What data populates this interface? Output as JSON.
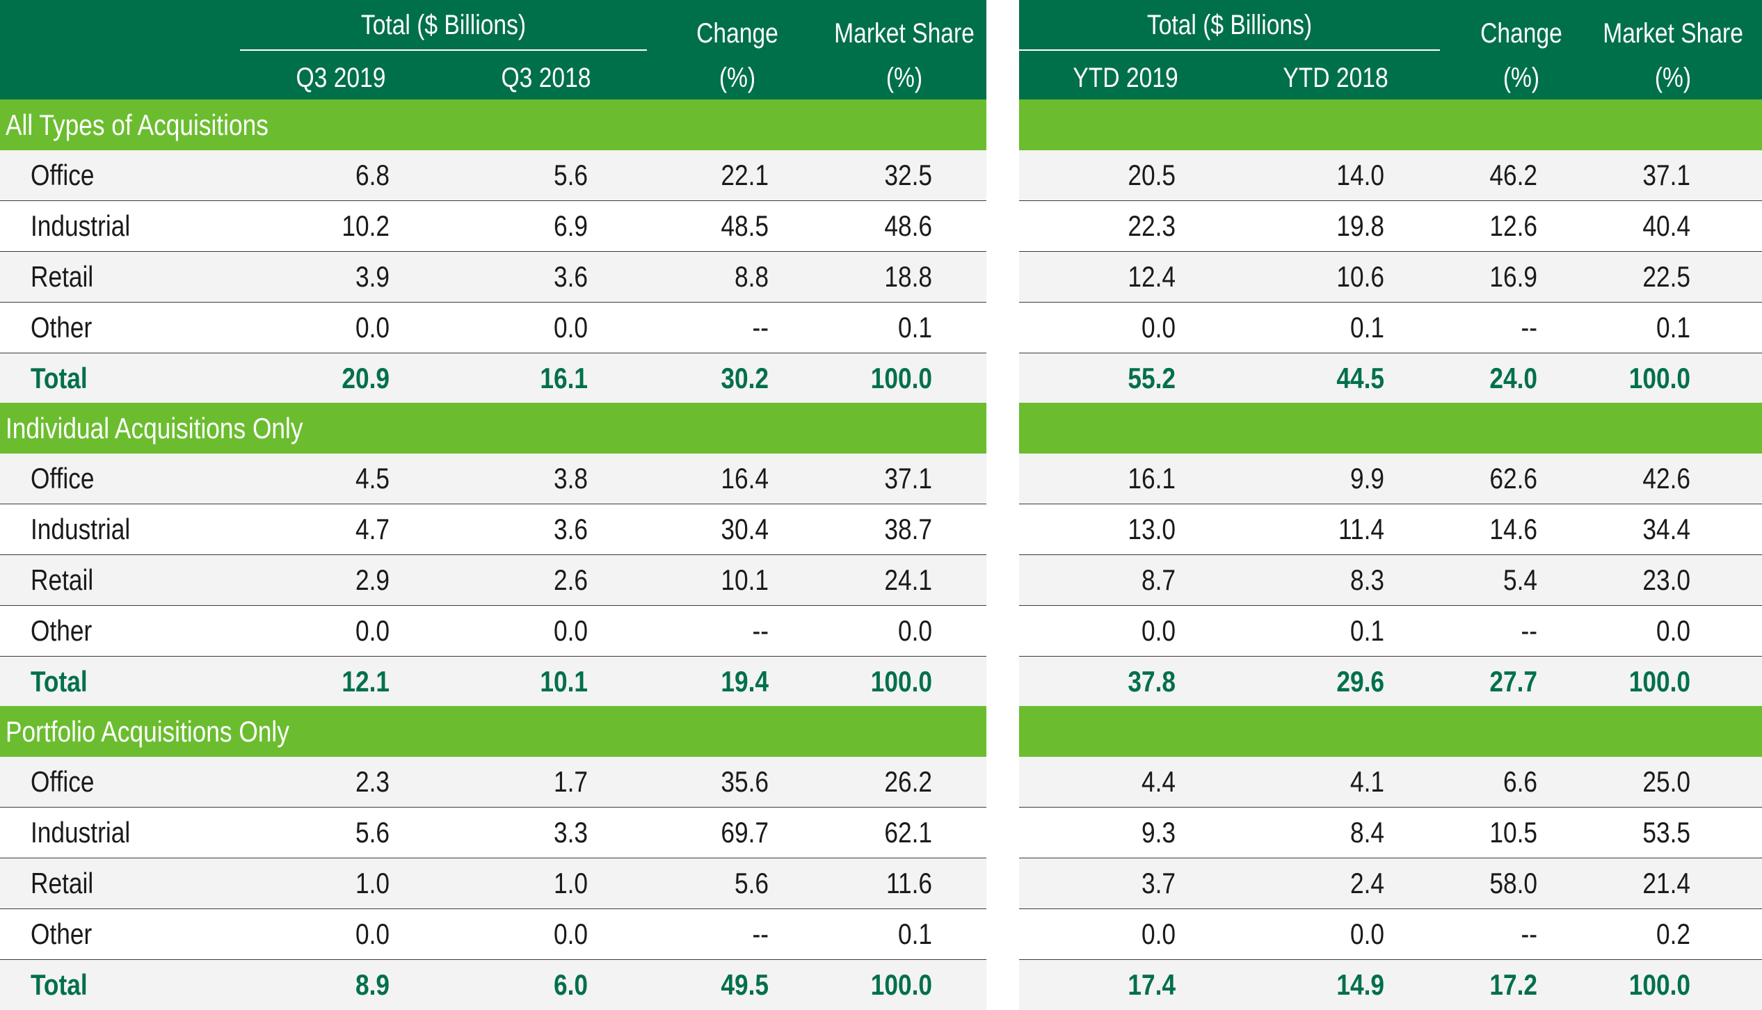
{
  "left": {
    "group_header": "Total ($ Billions)",
    "col1": "Q3 2019",
    "col2": "Q3 2018",
    "change_header": [
      "Change",
      "(%)"
    ],
    "share_header": [
      "Market Share",
      "(%)"
    ],
    "sections": [
      {
        "label": "All Types of Acquisitions",
        "rows": [
          {
            "name": "Office",
            "v": [
              "6.8",
              "5.6",
              "22.1",
              "32.5"
            ]
          },
          {
            "name": "Industrial",
            "v": [
              "10.2",
              "6.9",
              "48.5",
              "48.6"
            ]
          },
          {
            "name": "Retail",
            "v": [
              "3.9",
              "3.6",
              "8.8",
              "18.8"
            ]
          },
          {
            "name": "Other",
            "v": [
              "0.0",
              "0.0",
              "--",
              "0.1"
            ]
          },
          {
            "name": "Total",
            "v": [
              "20.9",
              "16.1",
              "30.2",
              "100.0"
            ]
          }
        ]
      },
      {
        "label": "Individual Acquisitions Only",
        "rows": [
          {
            "name": "Office",
            "v": [
              "4.5",
              "3.8",
              "16.4",
              "37.1"
            ]
          },
          {
            "name": "Industrial",
            "v": [
              "4.7",
              "3.6",
              "30.4",
              "38.7"
            ]
          },
          {
            "name": "Retail",
            "v": [
              "2.9",
              "2.6",
              "10.1",
              "24.1"
            ]
          },
          {
            "name": "Other",
            "v": [
              "0.0",
              "0.0",
              "--",
              "0.0"
            ]
          },
          {
            "name": "Total",
            "v": [
              "12.1",
              "10.1",
              "19.4",
              "100.0"
            ]
          }
        ]
      },
      {
        "label": "Portfolio Acquisitions Only",
        "rows": [
          {
            "name": "Office",
            "v": [
              "2.3",
              "1.7",
              "35.6",
              "26.2"
            ]
          },
          {
            "name": "Industrial",
            "v": [
              "5.6",
              "3.3",
              "69.7",
              "62.1"
            ]
          },
          {
            "name": "Retail",
            "v": [
              "1.0",
              "1.0",
              "5.6",
              "11.6"
            ]
          },
          {
            "name": "Other",
            "v": [
              "0.0",
              "0.0",
              "--",
              "0.1"
            ]
          },
          {
            "name": "Total",
            "v": [
              "8.9",
              "6.0",
              "49.5",
              "100.0"
            ]
          }
        ]
      }
    ]
  },
  "right": {
    "group_header": "Total ($ Billions)",
    "col1": "YTD 2019",
    "col2": "YTD 2018",
    "change_header": [
      "Change",
      "(%)"
    ],
    "share_header": [
      "Market Share",
      "(%)"
    ],
    "sections": [
      {
        "rows": [
          {
            "v": [
              "20.5",
              "14.0",
              "46.2",
              "37.1"
            ]
          },
          {
            "v": [
              "22.3",
              "19.8",
              "12.6",
              "40.4"
            ]
          },
          {
            "v": [
              "12.4",
              "10.6",
              "16.9",
              "22.5"
            ]
          },
          {
            "v": [
              "0.0",
              "0.1",
              "--",
              "0.1"
            ]
          },
          {
            "v": [
              "55.2",
              "44.5",
              "24.0",
              "100.0"
            ]
          }
        ]
      },
      {
        "rows": [
          {
            "v": [
              "16.1",
              "9.9",
              "62.6",
              "42.6"
            ]
          },
          {
            "v": [
              "13.0",
              "11.4",
              "14.6",
              "34.4"
            ]
          },
          {
            "v": [
              "8.7",
              "8.3",
              "5.4",
              "23.0"
            ]
          },
          {
            "v": [
              "0.0",
              "0.1",
              "--",
              "0.0"
            ]
          },
          {
            "v": [
              "37.8",
              "29.6",
              "27.7",
              "100.0"
            ]
          }
        ]
      },
      {
        "rows": [
          {
            "v": [
              "4.4",
              "4.1",
              "6.6",
              "25.0"
            ]
          },
          {
            "v": [
              "9.3",
              "8.4",
              "10.5",
              "53.5"
            ]
          },
          {
            "v": [
              "3.7",
              "2.4",
              "58.0",
              "21.4"
            ]
          },
          {
            "v": [
              "0.0",
              "0.0",
              "--",
              "0.2"
            ]
          },
          {
            "v": [
              "17.4",
              "14.9",
              "17.2",
              "100.0"
            ]
          }
        ]
      }
    ]
  },
  "colors": {
    "header_green": "#00704a",
    "section_green": "#6bbd2f",
    "alt_row": "#f3f3f3",
    "total_text": "#00704a"
  }
}
